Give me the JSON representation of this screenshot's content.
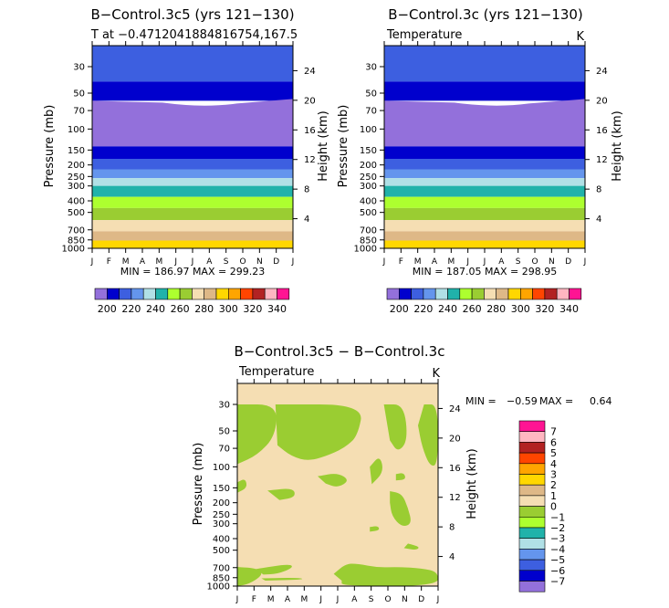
{
  "palette": {
    "n7": "#9370DB",
    "n6": "#0000CD",
    "n5": "#3D5FE0",
    "n4": "#6495ED",
    "n3": "#B0E0E6",
    "n2": "#20B2AA",
    "n1": "#ADFF2F",
    "z0": "#9ACD32",
    "p1": "#F5DEB3",
    "p2": "#DEB887",
    "p3": "#FFD700",
    "p4": "#FFA500",
    "p5": "#FF4500",
    "p6": "#B22222",
    "p7": "#FFB6C1",
    "p8": "#FF1493"
  },
  "chart_data": [
    {
      "type": "contour",
      "title": "B−Control.3c5 (yrs 121−130)",
      "subtitle": "T at −0.4712041884816754,167.5",
      "xlabel": "",
      "ylabel": "Pressure (mb)",
      "y2label": "Height (km)",
      "months": [
        "J",
        "F",
        "M",
        "A",
        "M",
        "J",
        "J",
        "A",
        "S",
        "O",
        "N",
        "D",
        "J"
      ],
      "pressure_ticks": [
        30,
        50,
        70,
        100,
        150,
        200,
        250,
        300,
        400,
        500,
        700,
        850,
        1000
      ],
      "height_ticks": [
        24,
        20,
        16,
        12,
        8,
        4
      ],
      "ylim": [
        1000,
        20
      ],
      "stats": "MIN = 186.97 MAX = 299.23",
      "min": 186.97,
      "max": 299.23,
      "levels": [
        200,
        220,
        240,
        260,
        280,
        300,
        320,
        340
      ],
      "bands_p": [
        {
          "p_top": 20,
          "p_bot": 40,
          "color_key": "n5"
        },
        {
          "p_top": 40,
          "p_bot": 58,
          "color_key": "n6"
        },
        {
          "p_top": 58,
          "p_bot": 140,
          "color_key": "n7"
        },
        {
          "p_top": 140,
          "p_bot": 178,
          "color_key": "n6"
        },
        {
          "p_top": 178,
          "p_bot": 218,
          "color_key": "n5"
        },
        {
          "p_top": 218,
          "p_bot": 258,
          "color_key": "n4"
        },
        {
          "p_top": 258,
          "p_bot": 300,
          "color_key": "n3"
        },
        {
          "p_top": 300,
          "p_bot": 370,
          "color_key": "n2"
        },
        {
          "p_top": 370,
          "p_bot": 460,
          "color_key": "n1"
        },
        {
          "p_top": 460,
          "p_bot": 580,
          "color_key": "z0"
        },
        {
          "p_top": 580,
          "p_bot": 720,
          "color_key": "p1"
        },
        {
          "p_top": 720,
          "p_bot": 860,
          "color_key": "p2"
        },
        {
          "p_top": 860,
          "p_bot": 1000,
          "color_key": "p3"
        }
      ]
    },
    {
      "type": "contour",
      "title": "B−Control.3c (yrs 121−130)",
      "subtitle": "Temperature",
      "units": "K",
      "xlabel": "",
      "ylabel": "Pressure (mb)",
      "y2label": "Height (km)",
      "months": [
        "J",
        "F",
        "M",
        "A",
        "M",
        "J",
        "J",
        "A",
        "S",
        "O",
        "N",
        "D",
        "J"
      ],
      "pressure_ticks": [
        30,
        50,
        70,
        100,
        150,
        200,
        250,
        300,
        400,
        500,
        700,
        850,
        1000
      ],
      "height_ticks": [
        24,
        20,
        16,
        12,
        8,
        4
      ],
      "ylim": [
        1000,
        20
      ],
      "stats": "MIN = 187.05 MAX = 298.95",
      "min": 187.05,
      "max": 298.95,
      "levels": [
        200,
        220,
        240,
        260,
        280,
        300,
        320,
        340
      ]
    },
    {
      "type": "contour",
      "title": "B−Control.3c5 − B−Control.3c",
      "subtitle": "Temperature",
      "units": "K",
      "ylabel": "Pressure (mb)",
      "y2label": "Height (km)",
      "months": [
        "J",
        "F",
        "M",
        "A",
        "M",
        "J",
        "J",
        "A",
        "S",
        "O",
        "N",
        "D",
        "J"
      ],
      "pressure_ticks": [
        30,
        50,
        70,
        100,
        150,
        200,
        250,
        300,
        400,
        500,
        700,
        850,
        1000
      ],
      "height_ticks": [
        24,
        20,
        16,
        12,
        8,
        4
      ],
      "stats_min_label": "MIN =",
      "stats_min": "−0.59",
      "stats_max_label": "MAX =",
      "stats_max": "0.64",
      "levels": [
        "7",
        "6",
        "5",
        "4",
        "3",
        "2",
        "1",
        "0",
        "−1",
        "−2",
        "−3",
        "−4",
        "−5",
        "−6",
        "−7"
      ],
      "legend_colors": [
        "p8",
        "p7",
        "p6",
        "p5",
        "p4",
        "p3",
        "p2",
        "p1",
        "z0",
        "n1",
        "n2",
        "n3",
        "n4",
        "n5",
        "n6",
        "n7"
      ],
      "background_key": "p1",
      "regions_key": "z0",
      "regions": [
        {
          "pts": [
            [
              0.0,
              30
            ],
            [
              0.2,
              30
            ],
            [
              0.19,
              55
            ],
            [
              0.1,
              80
            ],
            [
              0.0,
              95
            ]
          ]
        },
        {
          "pts": [
            [
              0.0,
              135
            ],
            [
              0.04,
              125
            ],
            [
              0.05,
              150
            ],
            [
              0.0,
              165
            ]
          ]
        },
        {
          "pts": [
            [
              0.19,
              30
            ],
            [
              0.63,
              30
            ],
            [
              0.6,
              55
            ],
            [
              0.54,
              68
            ],
            [
              0.47,
              78
            ],
            [
              0.36,
              90
            ],
            [
              0.27,
              82
            ],
            [
              0.2,
              66
            ]
          ]
        },
        {
          "pts": [
            [
              0.73,
              30
            ],
            [
              0.83,
              30
            ],
            [
              0.85,
              60
            ],
            [
              0.8,
              76
            ],
            [
              0.76,
              60
            ]
          ]
        },
        {
          "pts": [
            [
              0.93,
              30
            ],
            [
              1.0,
              30
            ],
            [
              1.0,
              95
            ],
            [
              0.96,
              100
            ],
            [
              0.92,
              68
            ],
            [
              0.9,
              45
            ]
          ]
        },
        {
          "pts": [
            [
              0.66,
              100
            ],
            [
              0.71,
              80
            ],
            [
              0.73,
              110
            ],
            [
              0.67,
              140
            ]
          ]
        },
        {
          "pts": [
            [
              0.4,
              120
            ],
            [
              0.5,
              112
            ],
            [
              0.56,
              130
            ],
            [
              0.5,
              150
            ],
            [
              0.44,
              138
            ]
          ]
        },
        {
          "pts": [
            [
              0.79,
              115
            ],
            [
              0.83,
              112
            ],
            [
              0.84,
              128
            ],
            [
              0.79,
              130
            ]
          ]
        },
        {
          "pts": [
            [
              0.15,
              158
            ],
            [
              0.28,
              150
            ],
            [
              0.29,
              180
            ],
            [
              0.21,
              190
            ]
          ]
        },
        {
          "pts": [
            [
              0.76,
              160
            ],
            [
              0.82,
              168
            ],
            [
              0.85,
              220
            ],
            [
              0.87,
              300
            ],
            [
              0.82,
              320
            ],
            [
              0.77,
              260
            ],
            [
              0.76,
              200
            ]
          ]
        },
        {
          "pts": [
            [
              0.66,
              320
            ],
            [
              0.7,
              312
            ],
            [
              0.71,
              340
            ],
            [
              0.66,
              350
            ]
          ]
        },
        {
          "pts": [
            [
              0.85,
              440
            ],
            [
              0.91,
              470
            ],
            [
              0.89,
              500
            ],
            [
              0.83,
              480
            ]
          ]
        },
        {
          "pts": [
            [
              0.0,
              690
            ],
            [
              0.1,
              710
            ],
            [
              0.13,
              800
            ],
            [
              0.06,
              960
            ],
            [
              0.0,
              1000
            ]
          ]
        },
        {
          "pts": [
            [
              0.09,
              720
            ],
            [
              0.26,
              650
            ],
            [
              0.28,
              700
            ],
            [
              0.2,
              790
            ],
            [
              0.13,
              800
            ]
          ]
        },
        {
          "pts": [
            [
              0.48,
              790
            ],
            [
              0.54,
              650
            ],
            [
              0.6,
              650
            ],
            [
              0.7,
              700
            ],
            [
              0.8,
              690
            ],
            [
              0.92,
              710
            ],
            [
              1.0,
              760
            ],
            [
              1.0,
              1000
            ],
            [
              0.52,
              1000
            ],
            [
              0.52,
              900
            ]
          ]
        },
        {
          "pts": [
            [
              0.12,
              860
            ],
            [
              0.3,
              850
            ],
            [
              0.34,
              880
            ],
            [
              0.14,
              900
            ]
          ]
        }
      ]
    }
  ]
}
